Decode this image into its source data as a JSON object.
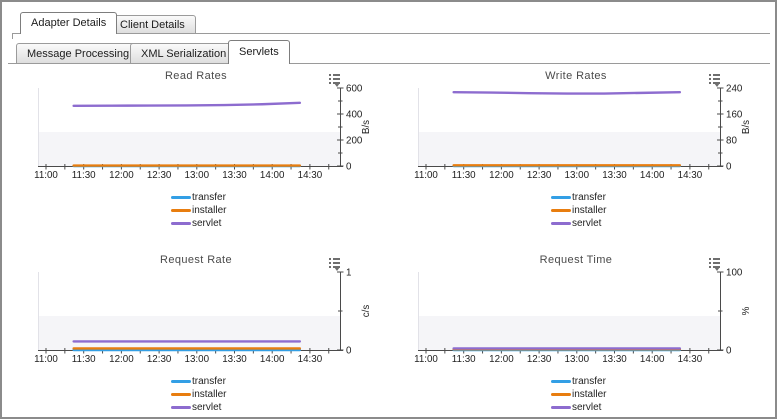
{
  "window": {
    "background": "#ffffff",
    "border_color": "#8b8b8b"
  },
  "tabs_primary": {
    "items": [
      {
        "label": "Adapter Details",
        "active": true
      },
      {
        "label": "Client Details",
        "active": false
      }
    ]
  },
  "tabs_secondary": {
    "items": [
      {
        "label": "Message Processing",
        "active": false
      },
      {
        "label": "XML Serialization",
        "active": false
      },
      {
        "label": "Servlets",
        "active": true
      }
    ]
  },
  "icons": {
    "chart_options": "dotted-list-with-down-arrow",
    "chart_options_arrow": "▾"
  },
  "colors": {
    "transfer": "#339fe5",
    "installer": "#e87d0f",
    "servlet": "#8d6ccf",
    "axis": "#4a4a4a"
  },
  "chart_data": [
    {
      "type": "line",
      "title": "Read Rates",
      "ylabel": "B/s",
      "ylim": [
        0,
        600
      ],
      "y_ticks": [
        0,
        200,
        400,
        600
      ],
      "y_minor_ticks": [
        100,
        300,
        500
      ],
      "x_ticks": [
        "11:00",
        "11:30",
        "12:00",
        "12:30",
        "13:00",
        "13:30",
        "14:00",
        "14:30"
      ],
      "x_minor_interval_minutes": 15,
      "x_axis_range": [
        "11:00",
        "14:45"
      ],
      "grid": false,
      "legend_position": "bottom",
      "x": [
        "11:22",
        "11:52",
        "12:22",
        "12:52",
        "13:22",
        "13:52",
        "14:22"
      ],
      "series": [
        {
          "name": "transfer",
          "color": "#339fe5",
          "values": [
            0,
            0,
            0,
            0,
            0,
            0,
            0
          ]
        },
        {
          "name": "installer",
          "color": "#e87d0f",
          "values": [
            3,
            3,
            3,
            3,
            3,
            3,
            3
          ]
        },
        {
          "name": "servlet",
          "color": "#8d6ccf",
          "values": [
            463,
            464,
            465,
            466,
            469,
            475,
            486
          ]
        }
      ]
    },
    {
      "type": "line",
      "title": "Write Rates",
      "ylabel": "B/s",
      "ylim": [
        0,
        240
      ],
      "y_ticks": [
        0,
        80,
        160,
        240
      ],
      "y_minor_ticks": [
        40,
        120,
        200
      ],
      "x_ticks": [
        "11:00",
        "11:30",
        "12:00",
        "12:30",
        "13:00",
        "13:30",
        "14:00",
        "14:30"
      ],
      "x_minor_interval_minutes": 15,
      "x_axis_range": [
        "11:00",
        "14:45"
      ],
      "grid": false,
      "legend_position": "bottom",
      "x": [
        "11:22",
        "11:52",
        "12:22",
        "12:52",
        "13:22",
        "13:52",
        "14:22"
      ],
      "series": [
        {
          "name": "transfer",
          "color": "#339fe5",
          "values": [
            0,
            0,
            0,
            0,
            0,
            0,
            0
          ]
        },
        {
          "name": "installer",
          "color": "#e87d0f",
          "values": [
            2,
            2,
            2,
            2,
            2,
            2,
            2
          ]
        },
        {
          "name": "servlet",
          "color": "#8d6ccf",
          "values": [
            227,
            226,
            224,
            223,
            223,
            225,
            227
          ]
        }
      ]
    },
    {
      "type": "line",
      "title": "Request Rate",
      "ylabel": "c/s",
      "ylim": [
        0,
        1
      ],
      "y_ticks": [
        0,
        1
      ],
      "y_minor_ticks": [
        0.5
      ],
      "x_ticks": [
        "11:00",
        "11:30",
        "12:00",
        "12:30",
        "13:00",
        "13:30",
        "14:00",
        "14:30"
      ],
      "x_minor_interval_minutes": 15,
      "x_axis_range": [
        "11:00",
        "14:45"
      ],
      "grid": false,
      "legend_position": "bottom",
      "x": [
        "11:22",
        "11:52",
        "12:22",
        "12:52",
        "13:22",
        "13:52",
        "14:22"
      ],
      "series": [
        {
          "name": "transfer",
          "color": "#339fe5",
          "values": [
            0,
            0,
            0,
            0,
            0,
            0,
            0
          ]
        },
        {
          "name": "installer",
          "color": "#e87d0f",
          "values": [
            0.02,
            0.02,
            0.02,
            0.02,
            0.02,
            0.02,
            0.02
          ]
        },
        {
          "name": "servlet",
          "color": "#8d6ccf",
          "values": [
            0.11,
            0.11,
            0.11,
            0.11,
            0.11,
            0.11,
            0.11
          ]
        }
      ]
    },
    {
      "type": "line",
      "title": "Request Time",
      "ylabel": "%",
      "ylim": [
        0,
        100
      ],
      "y_ticks": [
        0,
        100
      ],
      "y_minor_ticks": [
        50
      ],
      "x_ticks": [
        "11:00",
        "11:30",
        "12:00",
        "12:30",
        "13:00",
        "13:30",
        "14:00",
        "14:30"
      ],
      "x_minor_interval_minutes": 15,
      "x_axis_range": [
        "11:00",
        "14:45"
      ],
      "grid": false,
      "legend_position": "bottom",
      "x": [
        "11:22",
        "11:52",
        "12:22",
        "12:52",
        "13:22",
        "13:52",
        "14:22"
      ],
      "series": [
        {
          "name": "transfer",
          "color": "#339fe5",
          "values": [
            0,
            0,
            0,
            0,
            0,
            0,
            0
          ]
        },
        {
          "name": "installer",
          "color": "#e87d0f",
          "values": [
            1,
            1,
            1,
            1,
            1,
            1,
            1
          ]
        },
        {
          "name": "servlet",
          "color": "#8d6ccf",
          "values": [
            2,
            2,
            2,
            2,
            2,
            2,
            2
          ]
        }
      ]
    }
  ]
}
